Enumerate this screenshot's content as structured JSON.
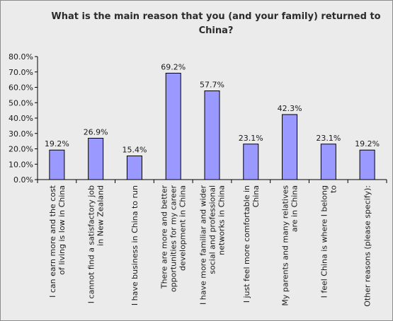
{
  "chart_data": {
    "type": "bar",
    "title_lines": [
      "What is the main  reason that you (and your family)  returned to",
      "China?"
    ],
    "xlabel": "",
    "ylabel": "",
    "ylim": [
      0,
      80
    ],
    "yticks": [
      "0.0%",
      "10.0%",
      "20.0%",
      "30.0%",
      "40.0%",
      "50.0%",
      "60.0%",
      "70.0%",
      "80.0%"
    ],
    "ytick_values": [
      0,
      10,
      20,
      30,
      40,
      50,
      60,
      70,
      80
    ],
    "grid": false,
    "legend": "none",
    "bar_color": "#9999ff",
    "categories": [
      [
        "I can earn more and the cost",
        "of living is low in China"
      ],
      [
        "I cannot find a satisfactory job",
        "in New Zealand"
      ],
      [
        "I have business in China to run"
      ],
      [
        "There are more and better",
        "opportunities for my career",
        "development in China"
      ],
      [
        "I have more familiar and wider",
        "social and professional",
        "networks in China"
      ],
      [
        "I just feel more comfortable in",
        "China"
      ],
      [
        "My parents and many relatives",
        "are in China"
      ],
      [
        "I feel China is where I belong",
        "to"
      ],
      [
        "Other reasons (please specify):"
      ]
    ],
    "values": [
      19.2,
      26.9,
      15.4,
      69.2,
      57.7,
      23.1,
      42.3,
      23.1,
      19.2
    ],
    "data_labels": [
      "19.2%",
      "26.9%",
      "15.4%",
      "69.2%",
      "57.7%",
      "23.1%",
      "42.3%",
      "23.1%",
      "19.2%"
    ]
  }
}
